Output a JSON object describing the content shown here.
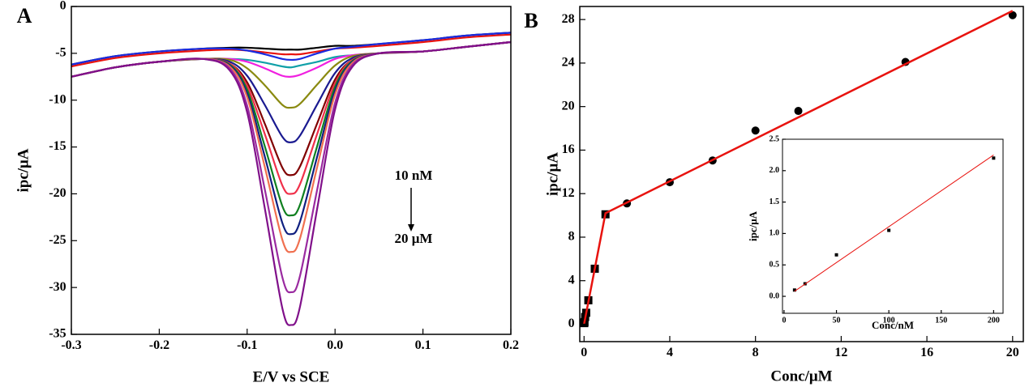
{
  "chart_data": [
    {
      "type": "line",
      "panel_label": "A",
      "x_label": "E/V vs SCE",
      "y_label": "ipc/μA",
      "annotations": [
        "10 nM",
        "20 μM"
      ],
      "xlim": [
        -0.3,
        0.2
      ],
      "ylim": [
        -35,
        0
      ],
      "xticks": [
        -0.3,
        -0.2,
        -0.1,
        {
          "value": 0,
          "label": "0.0"
        },
        0.1,
        0.2
      ],
      "yticks": [
        0,
        -5,
        -10,
        -15,
        -20,
        -25,
        -30,
        -35
      ],
      "x": [
        -0.3,
        -0.25,
        -0.2,
        -0.15,
        -0.12,
        -0.1,
        -0.08,
        -0.06,
        -0.05,
        -0.04,
        -0.02,
        0,
        0.02,
        0.05,
        0.1,
        0.15,
        0.2
      ],
      "series": [
        {
          "color": "#000000",
          "values": [
            -6.2,
            -5.3,
            -4.8,
            -4.5,
            -4.4,
            -4.4,
            -4.5,
            -4.6,
            -4.6,
            -4.6,
            -4.4,
            -4.2,
            -4.2,
            -4.0,
            -3.6,
            -3.1,
            -2.8
          ]
        },
        {
          "color": "#e8130f",
          "values": [
            -6.4,
            -5.5,
            -5.0,
            -4.7,
            -4.6,
            -4.7,
            -4.9,
            -5.1,
            -5.1,
            -5.1,
            -4.8,
            -4.5,
            -4.4,
            -4.2,
            -3.8,
            -3.3,
            -3.0
          ]
        },
        {
          "color": "#1a2be0",
          "values": [
            -6.2,
            -5.3,
            -4.8,
            -4.5,
            -4.5,
            -4.7,
            -5.1,
            -5.6,
            -5.7,
            -5.6,
            -5.0,
            -4.5,
            -4.3,
            -4.0,
            -3.6,
            -3.1,
            -2.8
          ]
        },
        {
          "color": "#10a0a8",
          "values": [
            -7.5,
            -6.5,
            -5.9,
            -5.6,
            -5.6,
            -5.7,
            -6.0,
            -6.4,
            -6.5,
            -6.3,
            -5.9,
            -5.4,
            -5.2,
            -5.0,
            -4.8,
            -4.3,
            -3.8
          ]
        },
        {
          "color": "#f020e0",
          "values": [
            -7.5,
            -6.5,
            -5.9,
            -5.6,
            -5.6,
            -5.9,
            -6.6,
            -7.4,
            -7.5,
            -7.3,
            -6.5,
            -5.6,
            -5.2,
            -5.0,
            -4.8,
            -4.3,
            -3.8
          ]
        },
        {
          "color": "#8a8a10",
          "values": [
            -7.5,
            -6.5,
            -5.9,
            -5.6,
            -5.7,
            -6.6,
            -8.4,
            -10.5,
            -10.8,
            -10.4,
            -8.3,
            -6.3,
            -5.3,
            -5.0,
            -4.8,
            -4.3,
            -3.8
          ]
        },
        {
          "color": "#1a1a90",
          "values": [
            -7.5,
            -6.5,
            -5.9,
            -5.6,
            -5.9,
            -7.4,
            -10.5,
            -13.9,
            -14.5,
            -13.8,
            -10.4,
            -7.1,
            -5.5,
            -5.0,
            -4.8,
            -4.3,
            -3.8
          ]
        },
        {
          "color": "#800000",
          "values": [
            -7.5,
            -6.5,
            -5.9,
            -5.6,
            -6.1,
            -8.1,
            -12.5,
            -17.2,
            -18.0,
            -17.1,
            -12.4,
            -7.8,
            -5.7,
            -5.0,
            -4.8,
            -4.3,
            -3.8
          ]
        },
        {
          "color": "#f0304a",
          "values": [
            -7.5,
            -6.5,
            -5.9,
            -5.6,
            -6.1,
            -8.5,
            -13.6,
            -19.1,
            -20.0,
            -19.0,
            -13.5,
            -8.2,
            -5.7,
            -5.0,
            -4.8,
            -4.3,
            -3.8
          ]
        },
        {
          "color": "#108020",
          "values": [
            -7.5,
            -6.5,
            -5.9,
            -5.6,
            -6.2,
            -8.9,
            -14.9,
            -21.3,
            -22.3,
            -21.2,
            -14.8,
            -8.6,
            -5.8,
            -5.0,
            -4.8,
            -4.3,
            -3.8
          ]
        },
        {
          "color": "#102080",
          "values": [
            -7.5,
            -6.5,
            -5.9,
            -5.6,
            -6.3,
            -9.3,
            -16.0,
            -23.1,
            -24.3,
            -23.0,
            -15.9,
            -9.0,
            -5.9,
            -5.0,
            -4.8,
            -4.3,
            -3.8
          ]
        },
        {
          "color": "#f07050",
          "values": [
            -7.5,
            -6.5,
            -5.9,
            -5.6,
            -6.4,
            -9.7,
            -17.1,
            -24.9,
            -26.2,
            -24.8,
            -17.0,
            -9.4,
            -6.0,
            -5.0,
            -4.8,
            -4.3,
            -3.8
          ]
        },
        {
          "color": "#9a2aa0",
          "values": [
            -7.5,
            -6.5,
            -5.9,
            -5.6,
            -6.6,
            -10.6,
            -19.5,
            -28.9,
            -30.5,
            -28.8,
            -19.4,
            -10.3,
            -6.2,
            -5.0,
            -4.8,
            -4.3,
            -3.8
          ]
        },
        {
          "color": "#80108a",
          "values": [
            -7.5,
            -6.5,
            -5.9,
            -5.6,
            -6.8,
            -11.3,
            -21.5,
            -32.2,
            -34.0,
            -32.1,
            -21.4,
            -11.0,
            -6.4,
            -5.0,
            -4.8,
            -4.3,
            -3.8
          ]
        }
      ]
    },
    {
      "type": "scatter",
      "panel_label": "B",
      "x_label": "Conc/μM",
      "y_label": "ipc/μA",
      "xlim": [
        -0.2,
        20.5
      ],
      "ylim": [
        -1.6,
        29.2
      ],
      "xticks": [
        0,
        4,
        8,
        12,
        16,
        20
      ],
      "yticks": [
        0,
        4,
        8,
        12,
        16,
        20,
        24,
        28
      ],
      "series": [
        {
          "marker": "square",
          "color": "#000000",
          "x": [
            0.01,
            0.02,
            0.05,
            0.1,
            0.2,
            0.5,
            1
          ],
          "values": [
            0.1,
            0.2,
            0.66,
            1.05,
            2.2,
            5.1,
            10.1
          ]
        },
        {
          "marker": "circle",
          "color": "#000000",
          "x": [
            2,
            4,
            6,
            8,
            10,
            15,
            20
          ],
          "values": [
            11.1,
            13.05,
            15.05,
            17.8,
            19.6,
            24.1,
            28.4
          ]
        },
        {
          "mode": "line",
          "color": "#e8130f",
          "x": [
            0,
            1,
            20
          ],
          "values": [
            0,
            10.2,
            28.8
          ]
        }
      ]
    },
    {
      "type": "scatter",
      "x_label": "Conc/nM",
      "y_label": "ipc/μA",
      "xlim": [
        -1.5,
        209
      ],
      "ylim": [
        -0.27,
        2.5
      ],
      "xticks": [
        0,
        50,
        100,
        150,
        200
      ],
      "yticks": [
        {
          "value": 0,
          "label": "0.0"
        },
        0.5,
        {
          "value": 1,
          "label": "1.0"
        },
        1.5,
        {
          "value": 2,
          "label": "2.0"
        },
        2.5
      ],
      "series": [
        {
          "marker": "square",
          "color": "#000000",
          "x": [
            10,
            20,
            50,
            100,
            200
          ],
          "values": [
            0.1,
            0.2,
            0.66,
            1.05,
            2.2
          ]
        },
        {
          "mode": "line",
          "color": "#e8130f",
          "x": [
            10,
            200
          ],
          "values": [
            0.08,
            2.25
          ]
        }
      ]
    }
  ]
}
